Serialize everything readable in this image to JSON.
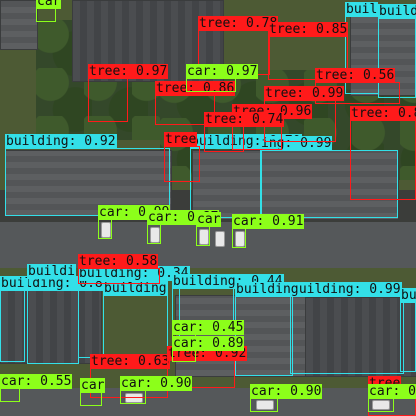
{
  "classes": {
    "building": {
      "color": "#33e0e8"
    },
    "tree": {
      "color": "#ff1a1a"
    },
    "car": {
      "color": "#8cff1a"
    }
  },
  "detections": [
    {
      "cls": "building",
      "text": "building: 0.92"
    },
    {
      "cls": "building",
      "text": "building: 0.70"
    },
    {
      "cls": "building",
      "text": "ing: 0.99"
    },
    {
      "cls": "building",
      "text": "building: 0.8"
    },
    {
      "cls": "building",
      "text": "building: 0.34"
    },
    {
      "cls": "building",
      "text": "building: 0.44"
    },
    {
      "cls": "building",
      "text": "building: 0.99"
    },
    {
      "cls": "building",
      "text": "building"
    },
    {
      "cls": "building",
      "text": "buil"
    },
    {
      "cls": "building",
      "text": "build"
    },
    {
      "cls": "building",
      "text": "building"
    },
    {
      "cls": "building",
      "text": "buildi"
    },
    {
      "cls": "building",
      "text": "bui"
    },
    {
      "cls": "tree",
      "text": "tree: 0.78"
    },
    {
      "cls": "tree",
      "text": "tree: 0.85"
    },
    {
      "cls": "tree",
      "text": "tree: 0.97"
    },
    {
      "cls": "tree",
      "text": "tree: 0.86"
    },
    {
      "cls": "tree",
      "text": "tree: 0.56"
    },
    {
      "cls": "tree",
      "text": "tree: 0.96"
    },
    {
      "cls": "tree",
      "text": "tree: 0.99"
    },
    {
      "cls": "tree",
      "text": "tree: 0.74"
    },
    {
      "cls": "tree",
      "text": "tree: 0.8"
    },
    {
      "cls": "tree",
      "text": "tree: 0.58"
    },
    {
      "cls": "tree",
      "text": "tree: 0.63"
    },
    {
      "cls": "tree",
      "text": "tree: 0.92"
    },
    {
      "cls": "tree",
      "text": "tree"
    },
    {
      "cls": "tree",
      "text": "tree"
    },
    {
      "cls": "car",
      "text": "car: 0.97"
    },
    {
      "cls": "car",
      "text": "car: 0.99"
    },
    {
      "cls": "car",
      "text": "car: 0.87"
    },
    {
      "cls": "car",
      "text": "car: 0.91"
    },
    {
      "cls": "car",
      "text": "car: 0.45"
    },
    {
      "cls": "car",
      "text": "car: 0.89"
    },
    {
      "cls": "car",
      "text": "car: 0.55"
    },
    {
      "cls": "car",
      "text": "car: 0.90"
    },
    {
      "cls": "car",
      "text": "car: 0.90"
    },
    {
      "cls": "car",
      "text": "car: 0.9"
    },
    {
      "cls": "car",
      "text": "car"
    },
    {
      "cls": "car",
      "text": "car"
    },
    {
      "cls": "car",
      "text": "car"
    }
  ]
}
